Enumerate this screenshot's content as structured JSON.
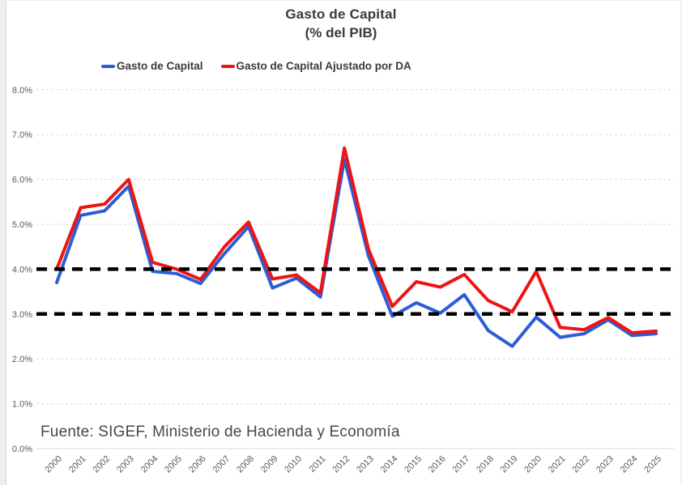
{
  "chart": {
    "title": "Gasto de Capital",
    "subtitle": "(% del PIB)",
    "source": "Fuente: SIGEF, Ministerio de Hacienda y Economía"
  },
  "chart_data": {
    "type": "line",
    "title": "Gasto de Capital",
    "subtitle": "(% del PIB)",
    "xlabel": "",
    "ylabel": "",
    "ylim": [
      0,
      8
    ],
    "ytick_labels": [
      "0.0%",
      "1.0%",
      "2.0%",
      "3.0%",
      "4.0%",
      "5.0%",
      "6.0%",
      "7.0%",
      "8.0%"
    ],
    "grid": true,
    "legend_position": "top",
    "categories": [
      "2000",
      "2001",
      "2002",
      "2003",
      "2004",
      "2005",
      "2006",
      "2007",
      "2008",
      "2009",
      "2010",
      "2011",
      "2012",
      "2013",
      "2014",
      "2015",
      "2016",
      "2017",
      "2018",
      "2019",
      "2020",
      "2021",
      "2022",
      "2023",
      "2024",
      "2025"
    ],
    "series": [
      {
        "name": "Gasto de Capital",
        "color": "#2c5cd8",
        "values": [
          3.7,
          5.2,
          5.3,
          5.85,
          3.95,
          3.9,
          3.68,
          4.35,
          4.95,
          3.58,
          3.8,
          3.38,
          6.45,
          4.3,
          2.95,
          3.25,
          3.02,
          3.43,
          2.63,
          2.28,
          2.93,
          2.48,
          2.56,
          2.87,
          2.52,
          2.56
        ]
      },
      {
        "name": "Gasto de Capital Ajustado por DA",
        "color": "#ee1414",
        "values": [
          4.0,
          5.37,
          5.45,
          6.0,
          4.15,
          4.0,
          3.77,
          4.5,
          5.05,
          3.78,
          3.87,
          3.47,
          6.7,
          4.45,
          3.17,
          3.72,
          3.6,
          3.88,
          3.3,
          3.05,
          3.95,
          2.7,
          2.65,
          2.92,
          2.58,
          2.62
        ]
      }
    ],
    "reference_lines": [
      {
        "value": 4.0,
        "style": "dashed",
        "color": "#000000"
      },
      {
        "value": 3.0,
        "style": "dashed",
        "color": "#000000"
      }
    ],
    "grid_color": "#d9d9d9",
    "tick_color": "#595959",
    "source": "Fuente: SIGEF, Ministerio de Hacienda y Economía"
  }
}
